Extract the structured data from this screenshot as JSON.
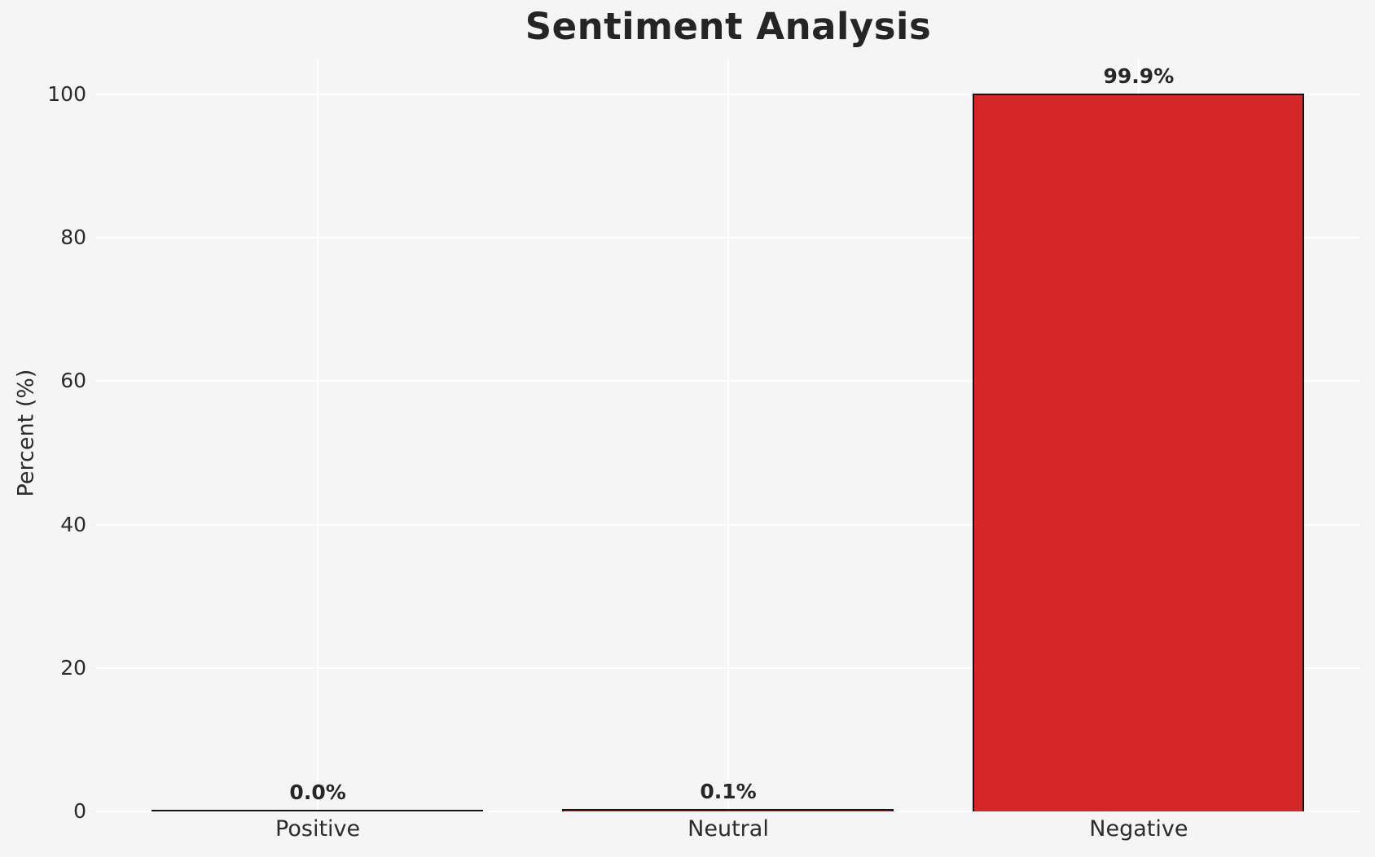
{
  "chart_data": {
    "type": "bar",
    "title": "Sentiment Analysis",
    "xlabel": "",
    "ylabel": "Percent (%)",
    "categories": [
      "Positive",
      "Neutral",
      "Negative"
    ],
    "values": [
      0.0,
      0.1,
      99.9
    ],
    "value_labels": [
      "0.0%",
      "0.1%",
      "99.9%"
    ],
    "yticks": [
      0,
      20,
      40,
      60,
      80,
      100
    ],
    "ylim": [
      0,
      105
    ],
    "grid": "on",
    "grid_color": "#ffffff",
    "legend_position": "none",
    "bar_color": "#d62728",
    "bar_edge_color": "#141414",
    "background_color": "#f5f5f6",
    "text_color": "#2b2b2b"
  }
}
